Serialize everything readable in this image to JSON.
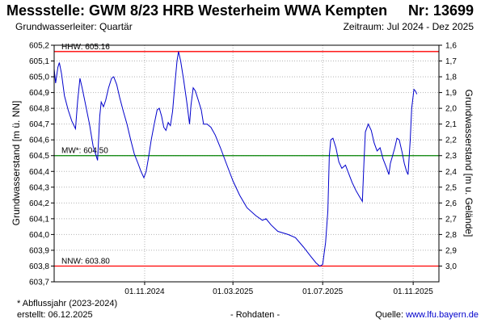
{
  "header": {
    "title": "Messstelle: GWM 8/23 HRB Westerheim WWA Kempten",
    "number": "Nr: 13699",
    "aquifer": "Grundwasserleiter: Quartär",
    "period": "Zeitraum: Jul 2024 - Dez 2025"
  },
  "footer": {
    "note": "* Abflussjahr (2023-2024)",
    "created": "erstellt:  06.12.2025",
    "rawdata": "- Rohdaten -",
    "source_label": "Quelle: ",
    "source_link": "www.lfu.bayern.de"
  },
  "colors": {
    "series": "#0000cc",
    "hhw": "#ff0000",
    "nnw": "#ff0000",
    "mw": "#008000",
    "grid": "#b4b4b4"
  },
  "chart_data": {
    "type": "line",
    "ylabel": "Grundwasserstand [m ü. NN]",
    "y2label": "Grundwasserstand [m u. Gelände]",
    "ylim": [
      603.7,
      605.2
    ],
    "y_ticks": [
      "605,2",
      "605,1",
      "605,0",
      "604,9",
      "604,8",
      "604,7",
      "604,6",
      "604,5",
      "604,4",
      "604,3",
      "604,2",
      "604,1",
      "604,0",
      "603,9",
      "603,8",
      "603,7"
    ],
    "y2_ticks": [
      "1,6",
      "1,7",
      "1,8",
      "1,9",
      "2,0",
      "2,1",
      "2,2",
      "2,3",
      "2,4",
      "2,5",
      "2,6",
      "2,7",
      "2,8",
      "2,9",
      "3,0"
    ],
    "x_range": [
      "2024-07-01",
      "2025-12-06"
    ],
    "x_ticks": [
      {
        "date": "2024-11-01",
        "label": "01.11.2024"
      },
      {
        "date": "2025-03-01",
        "label": "01.03.2025"
      },
      {
        "date": "2025-07-01",
        "label": "01.07.2025"
      },
      {
        "date": "2025-11-01",
        "label": "01.11.2025"
      }
    ],
    "reference_lines": [
      {
        "name": "HHW",
        "label": "HHW: 605.16",
        "value": 605.16,
        "color": "#ff0000"
      },
      {
        "name": "MW",
        "label": "MW*: 604.50",
        "value": 604.5,
        "color": "#008000"
      },
      {
        "name": "NNW",
        "label": "NNW: 603.80",
        "value": 603.8,
        "color": "#ff0000"
      }
    ],
    "grid": true,
    "series": [
      {
        "points": [
          [
            "2024-07-01",
            605.05
          ],
          [
            "2024-07-03",
            604.96
          ],
          [
            "2024-07-06",
            605.06
          ],
          [
            "2024-07-08",
            605.09
          ],
          [
            "2024-07-11",
            605.02
          ],
          [
            "2024-07-15",
            604.88
          ],
          [
            "2024-07-20",
            604.79
          ],
          [
            "2024-07-25",
            604.72
          ],
          [
            "2024-07-30",
            604.67
          ],
          [
            "2024-08-02",
            604.85
          ],
          [
            "2024-08-05",
            604.99
          ],
          [
            "2024-08-08",
            604.93
          ],
          [
            "2024-08-12",
            604.84
          ],
          [
            "2024-08-18",
            604.7
          ],
          [
            "2024-08-23",
            604.56
          ],
          [
            "2024-08-27",
            604.5
          ],
          [
            "2024-08-29",
            604.47
          ],
          [
            "2024-09-01",
            604.75
          ],
          [
            "2024-09-03",
            604.84
          ],
          [
            "2024-09-06",
            604.81
          ],
          [
            "2024-09-09",
            604.85
          ],
          [
            "2024-09-13",
            604.93
          ],
          [
            "2024-09-17",
            604.99
          ],
          [
            "2024-09-20",
            605.0
          ],
          [
            "2024-09-24",
            604.95
          ],
          [
            "2024-09-28",
            604.87
          ],
          [
            "2024-10-03",
            604.78
          ],
          [
            "2024-10-08",
            604.7
          ],
          [
            "2024-10-13",
            604.6
          ],
          [
            "2024-10-18",
            604.51
          ],
          [
            "2024-10-23",
            604.45
          ],
          [
            "2024-10-27",
            604.4
          ],
          [
            "2024-10-31",
            604.36
          ],
          [
            "2024-11-03",
            604.4
          ],
          [
            "2024-11-06",
            604.48
          ],
          [
            "2024-11-10",
            604.6
          ],
          [
            "2024-11-14",
            604.7
          ],
          [
            "2024-11-18",
            604.79
          ],
          [
            "2024-11-21",
            604.8
          ],
          [
            "2024-11-24",
            604.75
          ],
          [
            "2024-11-27",
            604.68
          ],
          [
            "2024-11-30",
            604.66
          ],
          [
            "2024-12-03",
            604.71
          ],
          [
            "2024-12-06",
            604.69
          ],
          [
            "2024-12-09",
            604.78
          ],
          [
            "2024-12-12",
            604.95
          ],
          [
            "2024-12-15",
            605.1
          ],
          [
            "2024-12-17",
            605.16
          ],
          [
            "2024-12-20",
            605.1
          ],
          [
            "2024-12-24",
            604.98
          ],
          [
            "2024-12-28",
            604.85
          ],
          [
            "2025-01-01",
            604.7
          ],
          [
            "2025-01-03",
            604.82
          ],
          [
            "2025-01-06",
            604.93
          ],
          [
            "2025-01-09",
            604.91
          ],
          [
            "2025-01-13",
            604.85
          ],
          [
            "2025-01-17",
            604.79
          ],
          [
            "2025-01-20",
            604.7
          ],
          [
            "2025-01-25",
            604.7
          ],
          [
            "2025-01-30",
            604.68
          ],
          [
            "2025-02-05",
            604.63
          ],
          [
            "2025-02-12",
            604.55
          ],
          [
            "2025-02-20",
            604.45
          ],
          [
            "2025-03-01",
            604.34
          ],
          [
            "2025-03-10",
            604.25
          ],
          [
            "2025-03-20",
            604.17
          ],
          [
            "2025-04-01",
            604.12
          ],
          [
            "2025-04-10",
            604.09
          ],
          [
            "2025-04-15",
            604.1
          ],
          [
            "2025-04-22",
            604.06
          ],
          [
            "2025-05-01",
            604.02
          ],
          [
            "2025-05-15",
            604.0
          ],
          [
            "2025-05-25",
            603.98
          ],
          [
            "2025-06-05",
            603.92
          ],
          [
            "2025-06-15",
            603.86
          ],
          [
            "2025-06-22",
            603.82
          ],
          [
            "2025-06-27",
            603.8
          ],
          [
            "2025-07-01",
            603.81
          ],
          [
            "2025-07-05",
            603.95
          ],
          [
            "2025-07-08",
            604.15
          ],
          [
            "2025-07-10",
            604.5
          ],
          [
            "2025-07-12",
            604.6
          ],
          [
            "2025-07-15",
            604.61
          ],
          [
            "2025-07-19",
            604.55
          ],
          [
            "2025-07-23",
            604.46
          ],
          [
            "2025-07-27",
            604.42
          ],
          [
            "2025-08-01",
            604.44
          ],
          [
            "2025-08-05",
            604.39
          ],
          [
            "2025-08-10",
            604.33
          ],
          [
            "2025-08-15",
            604.28
          ],
          [
            "2025-08-20",
            604.24
          ],
          [
            "2025-08-24",
            604.21
          ],
          [
            "2025-08-26",
            604.45
          ],
          [
            "2025-08-28",
            604.65
          ],
          [
            "2025-09-01",
            604.7
          ],
          [
            "2025-09-05",
            604.66
          ],
          [
            "2025-09-09",
            604.58
          ],
          [
            "2025-09-13",
            604.53
          ],
          [
            "2025-09-17",
            604.55
          ],
          [
            "2025-09-21",
            604.48
          ],
          [
            "2025-09-26",
            604.42
          ],
          [
            "2025-09-29",
            604.38
          ],
          [
            "2025-10-01",
            604.45
          ],
          [
            "2025-10-04",
            604.5
          ],
          [
            "2025-10-07",
            604.55
          ],
          [
            "2025-10-10",
            604.61
          ],
          [
            "2025-10-13",
            604.6
          ],
          [
            "2025-10-17",
            604.52
          ],
          [
            "2025-10-20",
            604.45
          ],
          [
            "2025-10-23",
            604.4
          ],
          [
            "2025-10-25",
            604.38
          ],
          [
            "2025-10-28",
            604.6
          ],
          [
            "2025-10-30",
            604.8
          ],
          [
            "2025-11-02",
            604.92
          ],
          [
            "2025-11-04",
            604.91
          ],
          [
            "2025-11-06",
            604.89
          ]
        ]
      }
    ]
  }
}
